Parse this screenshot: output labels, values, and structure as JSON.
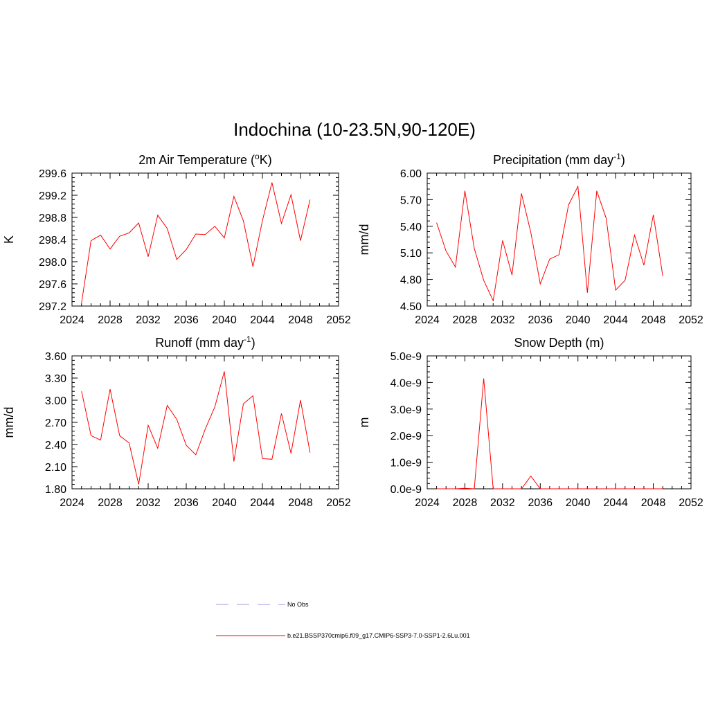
{
  "figure": {
    "title": "Indochina (10-23.5N,90-120E)"
  },
  "legend": {
    "entries": [
      {
        "label": "No Obs",
        "color": "#9999dd",
        "style": "dashed"
      },
      {
        "label": "b.e21.BSSP370cmip6.f09_g17.CMIP6-SSP3-7.0-SSP1-2.6Lu.001",
        "color": "#ff0000",
        "style": "solid"
      }
    ]
  },
  "chart_data": [
    {
      "type": "line",
      "title": "2m Air Temperature (",
      "title_suffix": "K)",
      "title_sup": "o",
      "ylabel": "K",
      "xlim": [
        2024,
        2052
      ],
      "xticks": [
        "2024",
        "2028",
        "2032",
        "2036",
        "2040",
        "2044",
        "2048",
        "2052"
      ],
      "ylim": [
        297.2,
        299.6
      ],
      "yticks": [
        "297.2",
        "297.6",
        "298.0",
        "298.4",
        "298.8",
        "299.2",
        "299.6"
      ],
      "series": [
        {
          "color": "#ff0000",
          "x": [
            2025,
            2026,
            2027,
            2028,
            2029,
            2030,
            2031,
            2032,
            2033,
            2034,
            2035,
            2036,
            2037,
            2038,
            2039,
            2040,
            2041,
            2042,
            2043,
            2044,
            2045,
            2046,
            2047,
            2048,
            2049
          ],
          "y": [
            297.26,
            298.38,
            298.48,
            298.23,
            298.46,
            298.52,
            298.7,
            298.09,
            298.84,
            298.6,
            298.04,
            298.22,
            298.5,
            298.49,
            298.64,
            298.43,
            299.18,
            298.74,
            297.91,
            298.74,
            299.43,
            298.69,
            299.21,
            298.38,
            299.12
          ]
        }
      ]
    },
    {
      "type": "line",
      "title": "Precipitation (mm day",
      "title_sup": "-1",
      "title_suffix": ")",
      "ylabel": "mm/d",
      "xlim": [
        2024,
        2052
      ],
      "xticks": [
        "2024",
        "2028",
        "2032",
        "2036",
        "2040",
        "2044",
        "2048",
        "2052"
      ],
      "ylim": [
        4.5,
        6.0
      ],
      "yticks": [
        "4.50",
        "4.80",
        "5.10",
        "5.40",
        "5.70",
        "6.00"
      ],
      "series": [
        {
          "color": "#ff0000",
          "x": [
            2025,
            2026,
            2027,
            2028,
            2029,
            2030,
            2031,
            2032,
            2033,
            2034,
            2035,
            2036,
            2037,
            2038,
            2039,
            2040,
            2041,
            2042,
            2043,
            2044,
            2045,
            2046,
            2047,
            2048,
            2049
          ],
          "y": [
            5.44,
            5.12,
            4.94,
            5.8,
            5.15,
            4.79,
            4.56,
            5.24,
            4.85,
            5.77,
            5.33,
            4.75,
            5.03,
            5.08,
            5.64,
            5.85,
            4.65,
            5.8,
            5.49,
            4.68,
            4.79,
            5.3,
            4.96,
            5.53,
            4.84
          ]
        }
      ]
    },
    {
      "type": "line",
      "title": "Runoff (mm day",
      "title_sup": "-1",
      "title_suffix": ")",
      "ylabel": "mm/d",
      "xlim": [
        2024,
        2052
      ],
      "xticks": [
        "2024",
        "2028",
        "2032",
        "2036",
        "2040",
        "2044",
        "2048",
        "2052"
      ],
      "ylim": [
        1.8,
        3.6
      ],
      "yticks": [
        "1.80",
        "2.10",
        "2.40",
        "2.70",
        "3.00",
        "3.30",
        "3.60"
      ],
      "series": [
        {
          "color": "#ff0000",
          "x": [
            2025,
            2026,
            2027,
            2028,
            2029,
            2030,
            2031,
            2032,
            2033,
            2034,
            2035,
            2036,
            2037,
            2038,
            2039,
            2040,
            2041,
            2042,
            2043,
            2044,
            2045,
            2046,
            2047,
            2048,
            2049
          ],
          "y": [
            3.12,
            2.52,
            2.46,
            3.15,
            2.52,
            2.42,
            1.86,
            2.66,
            2.35,
            2.93,
            2.74,
            2.39,
            2.26,
            2.61,
            2.91,
            3.39,
            2.17,
            2.95,
            3.06,
            2.21,
            2.2,
            2.82,
            2.28,
            3.0,
            2.29
          ]
        }
      ]
    },
    {
      "type": "line",
      "title": "Snow Depth (m)",
      "title_sup": "",
      "title_suffix": "",
      "ylabel": "m",
      "xlim": [
        2024,
        2052
      ],
      "xticks": [
        "2024",
        "2028",
        "2032",
        "2036",
        "2040",
        "2044",
        "2048",
        "2052"
      ],
      "ylim": [
        0,
        5e-09
      ],
      "yticks": [
        "0.0e-9",
        "1.0e-9",
        "2.0e-9",
        "3.0e-9",
        "4.0e-9",
        "5.0e-9"
      ],
      "series": [
        {
          "color": "#ff0000",
          "x": [
            2025,
            2026,
            2027,
            2028,
            2029,
            2030,
            2031,
            2032,
            2033,
            2034,
            2035,
            2036,
            2037,
            2038,
            2039,
            2040,
            2041,
            2042,
            2043,
            2044,
            2045,
            2046,
            2047,
            2048,
            2049
          ],
          "y": [
            0,
            0,
            0,
            2e-11,
            0,
            4.15e-09,
            0,
            0,
            0,
            0,
            4.8e-10,
            0,
            0,
            0,
            0,
            0,
            0,
            0,
            0,
            0,
            0,
            0,
            0,
            0,
            0
          ]
        }
      ]
    }
  ]
}
